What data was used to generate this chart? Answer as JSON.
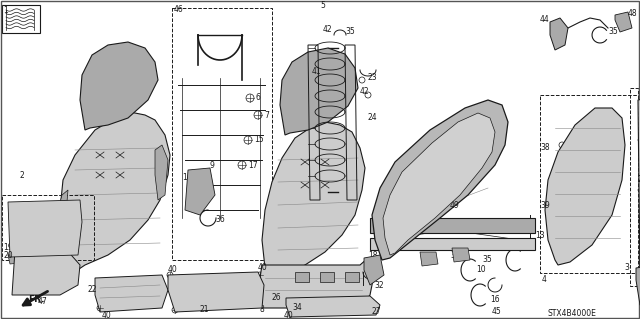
{
  "bg_color": "#ffffff",
  "line_color": "#1a1a1a",
  "gray_light": "#cccccc",
  "gray_mid": "#aaaaaa",
  "gray_dark": "#888888",
  "fig_width": 6.4,
  "fig_height": 3.19,
  "dpi": 100,
  "diagram_code": "STX4B4000E"
}
